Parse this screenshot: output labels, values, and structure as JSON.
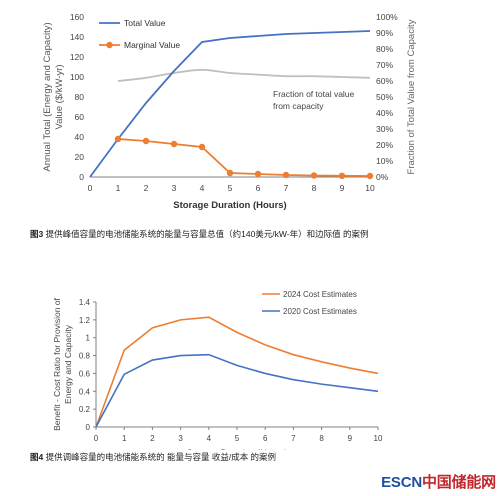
{
  "captions": [
    {
      "fig": "图3",
      "text": "提供峰值容量的电池储能系统的能量与容量总值（约140美元/kW-年）和边际值 的案例"
    },
    {
      "fig": "图4",
      "text": "提供调峰容量的电池储能系统的 能量与容量 收益/成本 的案例"
    }
  ],
  "logo": {
    "part1": "ESCN",
    "part2": "中国储能网"
  },
  "colors": {
    "blue": "#4472C4",
    "orange": "#ED7D31",
    "gray": "#BFBFBF",
    "axis": "#808080"
  },
  "chart_data": [
    {
      "type": "line",
      "xlabel": "Storage Duration (Hours)",
      "ylabel": "Annual Total (Energy and Capacity) Value ($/kW-yr)",
      "y2label": "Fraction of Total Value from Capacity",
      "x": [
        0,
        1,
        2,
        3,
        4,
        5,
        6,
        7,
        8,
        9,
        10
      ],
      "xlim": [
        0,
        10
      ],
      "ylim": [
        0,
        160
      ],
      "y2lim": [
        0,
        1
      ],
      "yticks": [
        "0",
        "20",
        "40",
        "60",
        "80",
        "100",
        "120",
        "140",
        "160"
      ],
      "y2ticks": [
        "0%",
        "10%",
        "20%",
        "30%",
        "40%",
        "50%",
        "60%",
        "70%",
        "80%",
        "90%",
        "100%"
      ],
      "xticks": [
        "0",
        "1",
        "2",
        "3",
        "4",
        "5",
        "6",
        "7",
        "8",
        "9",
        "10"
      ],
      "grid": false,
      "legend": "top-left",
      "annotation": "Fraction of total value from capacity",
      "series": [
        {
          "name": "Total Value",
          "axis": "left",
          "marker": false,
          "color": "#4472C4",
          "values": [
            0,
            38,
            74,
            106,
            135,
            139,
            141,
            143,
            144,
            145,
            146
          ]
        },
        {
          "name": "Marginal Value",
          "axis": "left",
          "marker": true,
          "color": "#ED7D31",
          "x": [
            1,
            2,
            3,
            4,
            5,
            6,
            7,
            8,
            9,
            10
          ],
          "values": [
            38,
            36,
            33,
            30,
            4,
            3,
            2,
            1.5,
            1.2,
            1
          ]
        },
        {
          "axis": "right",
          "marker": false,
          "color": "#BFBFBF",
          "x": [
            1,
            2,
            3,
            4,
            5,
            6,
            7,
            8,
            9,
            10
          ],
          "values": [
            0.6,
            0.62,
            0.65,
            0.67,
            0.65,
            0.64,
            0.63,
            0.63,
            0.625,
            0.62
          ]
        }
      ]
    },
    {
      "type": "line",
      "xlabel": "Storage Duration (Hours)",
      "ylabel": "Benefit - Cost Ratio for Provision of Energy and Capacity",
      "x": [
        0,
        1,
        2,
        3,
        4,
        5,
        6,
        7,
        8,
        9,
        10
      ],
      "xlim": [
        0,
        10
      ],
      "ylim": [
        0,
        1.4
      ],
      "yticks": [
        "0",
        "0.2",
        "0.4",
        "0.6",
        "0.8",
        "1",
        "1.2",
        "1.4"
      ],
      "xticks": [
        "0",
        "1",
        "2",
        "3",
        "4",
        "5",
        "6",
        "7",
        "8",
        "9",
        "10"
      ],
      "grid": false,
      "legend": "top-right",
      "series": [
        {
          "name": "2024 Cost Estimates",
          "color": "#ED7D31",
          "values": [
            0,
            0.86,
            1.11,
            1.2,
            1.23,
            1.06,
            0.92,
            0.81,
            0.73,
            0.66,
            0.6
          ]
        },
        {
          "name": "2020 Cost Estimates",
          "color": "#4472C4",
          "values": [
            0,
            0.59,
            0.75,
            0.8,
            0.81,
            0.69,
            0.6,
            0.53,
            0.48,
            0.44,
            0.4
          ]
        }
      ]
    }
  ]
}
